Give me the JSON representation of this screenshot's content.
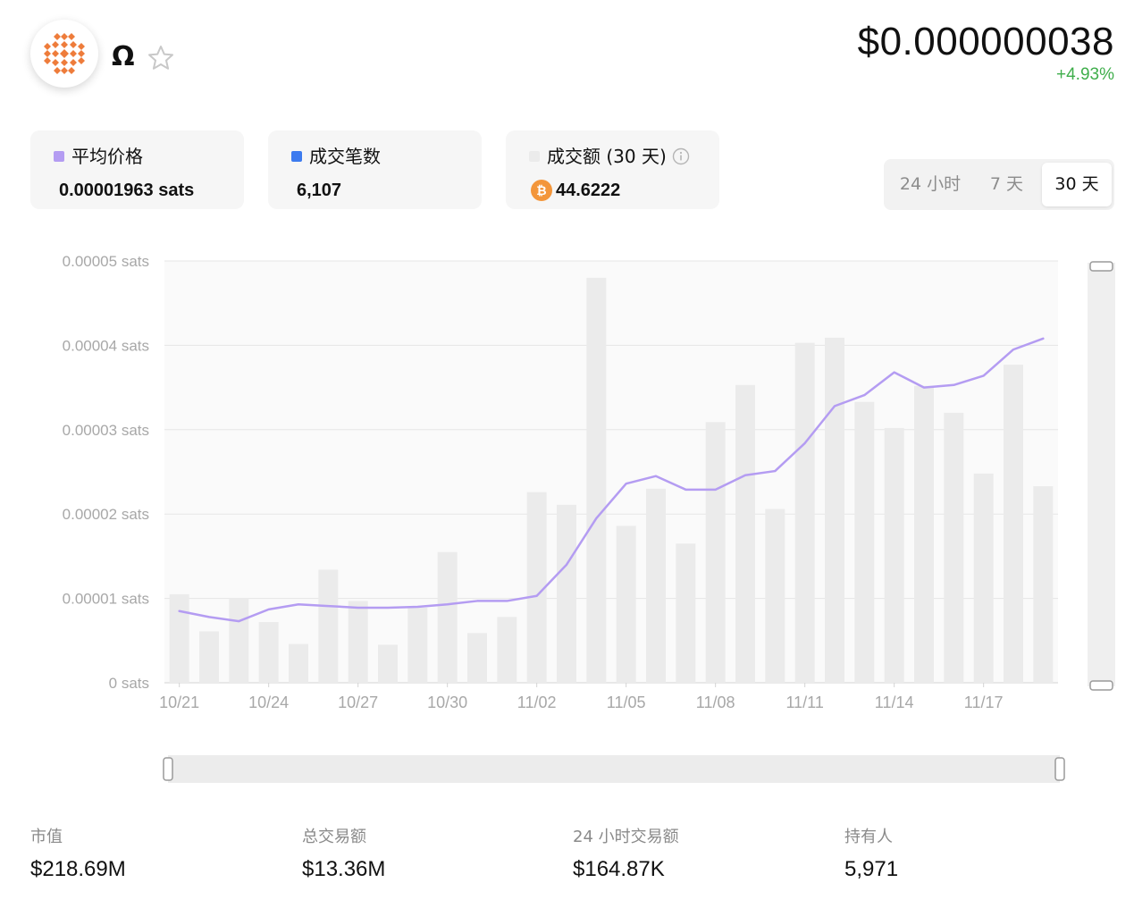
{
  "header": {
    "token_name": "Ω",
    "price": "$0.000000038",
    "change": "+4.93%",
    "change_color": "#3fae4b",
    "logo_color": "#ee7c3b"
  },
  "cards": [
    {
      "label": "平均价格",
      "value": "0.00001963 sats",
      "swatch_color": "#b49cf2"
    },
    {
      "label": "成交笔数",
      "value": "6,107",
      "swatch_color": "#3d7bef"
    },
    {
      "label": "成交额 (30 天)",
      "value": "44.6222",
      "swatch_color": "#ebebeb",
      "icon": "bitcoin-icon"
    }
  ],
  "range_toggle": {
    "options": [
      "24 小时",
      "7 天",
      "30 天"
    ],
    "selected": "30 天"
  },
  "chart_data": {
    "type": "bar+line",
    "x": [
      "10/21",
      "10/22",
      "10/23",
      "10/24",
      "10/25",
      "10/26",
      "10/27",
      "10/28",
      "10/29",
      "10/30",
      "10/31",
      "11/01",
      "11/02",
      "11/03",
      "11/04",
      "11/05",
      "11/06",
      "11/07",
      "11/08",
      "11/09",
      "11/10",
      "11/11",
      "11/12",
      "11/13",
      "11/14",
      "11/15",
      "11/16",
      "11/17",
      "11/18",
      "11/19"
    ],
    "x_tick_labels": [
      "10/21",
      "10/24",
      "10/27",
      "10/30",
      "11/02",
      "11/05",
      "11/08",
      "11/11",
      "11/14",
      "11/17"
    ],
    "y_tick_labels": [
      "0 sats",
      "0.00001 sats",
      "0.00002 sats",
      "0.00003 sats",
      "0.00004 sats",
      "0.00005 sats"
    ],
    "ylim": [
      0,
      5e-05
    ],
    "y_unit": "sats",
    "series": [
      {
        "name": "成交额 (30 天)",
        "type": "bar",
        "color": "#ebebeb",
        "values": [
          1.05e-05,
          6.1e-06,
          1e-05,
          7.2e-06,
          4.6e-06,
          1.34e-05,
          9.7e-06,
          4.5e-06,
          8.9e-06,
          1.55e-05,
          5.9e-06,
          7.8e-06,
          2.26e-05,
          2.11e-05,
          4.8e-05,
          1.86e-05,
          2.3e-05,
          1.65e-05,
          3.09e-05,
          3.53e-05,
          2.06e-05,
          4.03e-05,
          4.09e-05,
          3.33e-05,
          3.02e-05,
          3.52e-05,
          3.2e-05,
          2.48e-05,
          3.77e-05,
          2.33e-05
        ]
      },
      {
        "name": "平均价格",
        "type": "line",
        "color": "#b49cf2",
        "values": [
          8.5e-06,
          7.8e-06,
          7.3e-06,
          8.7e-06,
          9.3e-06,
          9.1e-06,
          8.9e-06,
          8.9e-06,
          9e-06,
          9.3e-06,
          9.7e-06,
          9.7e-06,
          1.03e-05,
          1.4e-05,
          1.95e-05,
          2.36e-05,
          2.45e-05,
          2.29e-05,
          2.29e-05,
          2.46e-05,
          2.51e-05,
          2.84e-05,
          3.28e-05,
          3.41e-05,
          3.68e-05,
          3.5e-05,
          3.53e-05,
          3.64e-05,
          3.95e-05,
          4.08e-05
        ]
      }
    ],
    "grid": true
  },
  "stats": [
    {
      "label": "市值",
      "value": "$218.69M"
    },
    {
      "label": "总交易额",
      "value": "$13.36M"
    },
    {
      "label": "24 小时交易额",
      "value": "$164.87K"
    },
    {
      "label": "持有人",
      "value": "5,971"
    }
  ]
}
